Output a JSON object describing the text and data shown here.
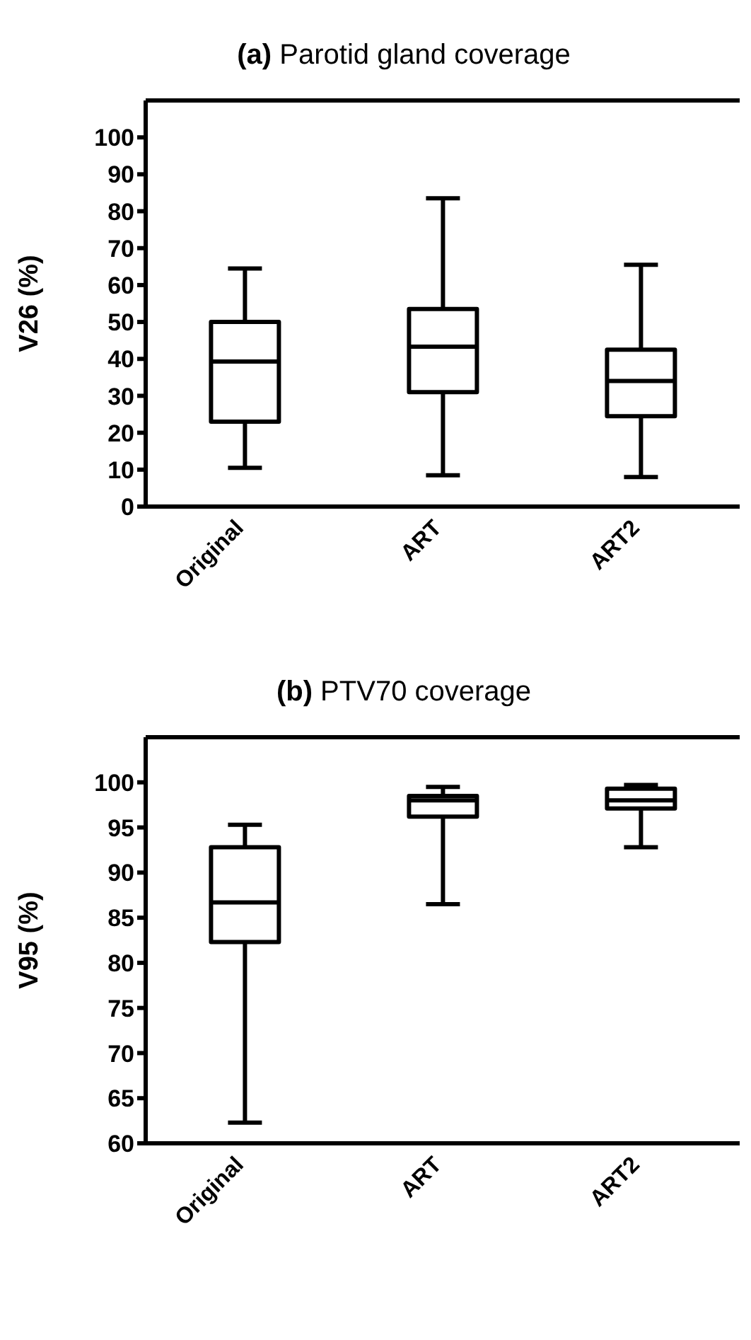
{
  "chart_data": [
    {
      "type": "box",
      "title": "(a) Parotid gland coverage",
      "ylabel": "V26 (%)",
      "categories": [
        "Original",
        "ART",
        "ART2"
      ],
      "color": "#000000",
      "boxes": [
        {
          "low": 10.5,
          "q1": 23,
          "median": 39.3,
          "q3": 50,
          "high": 64.5
        },
        {
          "low": 8.5,
          "q1": 31,
          "median": 43.3,
          "q3": 53.5,
          "high": 83.5
        },
        {
          "low": 8,
          "q1": 24.5,
          "median": 34,
          "q3": 42.5,
          "high": 65.5
        }
      ],
      "ylim": [
        0,
        110
      ],
      "yticks": [
        0,
        10,
        20,
        30,
        40,
        50,
        60,
        70,
        80,
        90,
        100
      ]
    },
    {
      "type": "box",
      "title": "(b) PTV70 coverage",
      "ylabel": "V95 (%)",
      "categories": [
        "Original",
        "ART",
        "ART2"
      ],
      "color": "#000000",
      "boxes": [
        {
          "low": 62.3,
          "q1": 82.3,
          "median": 86.7,
          "q3": 92.8,
          "high": 95.3
        },
        {
          "low": 86.5,
          "q1": 96.2,
          "median": 98.0,
          "q3": 98.5,
          "high": 99.5
        },
        {
          "low": 92.8,
          "q1": 97.1,
          "median": 98.0,
          "q3": 99.3,
          "high": 99.7
        }
      ],
      "ylim": [
        60,
        105
      ],
      "yticks": [
        60,
        65,
        70,
        75,
        80,
        85,
        90,
        95,
        100
      ]
    }
  ]
}
